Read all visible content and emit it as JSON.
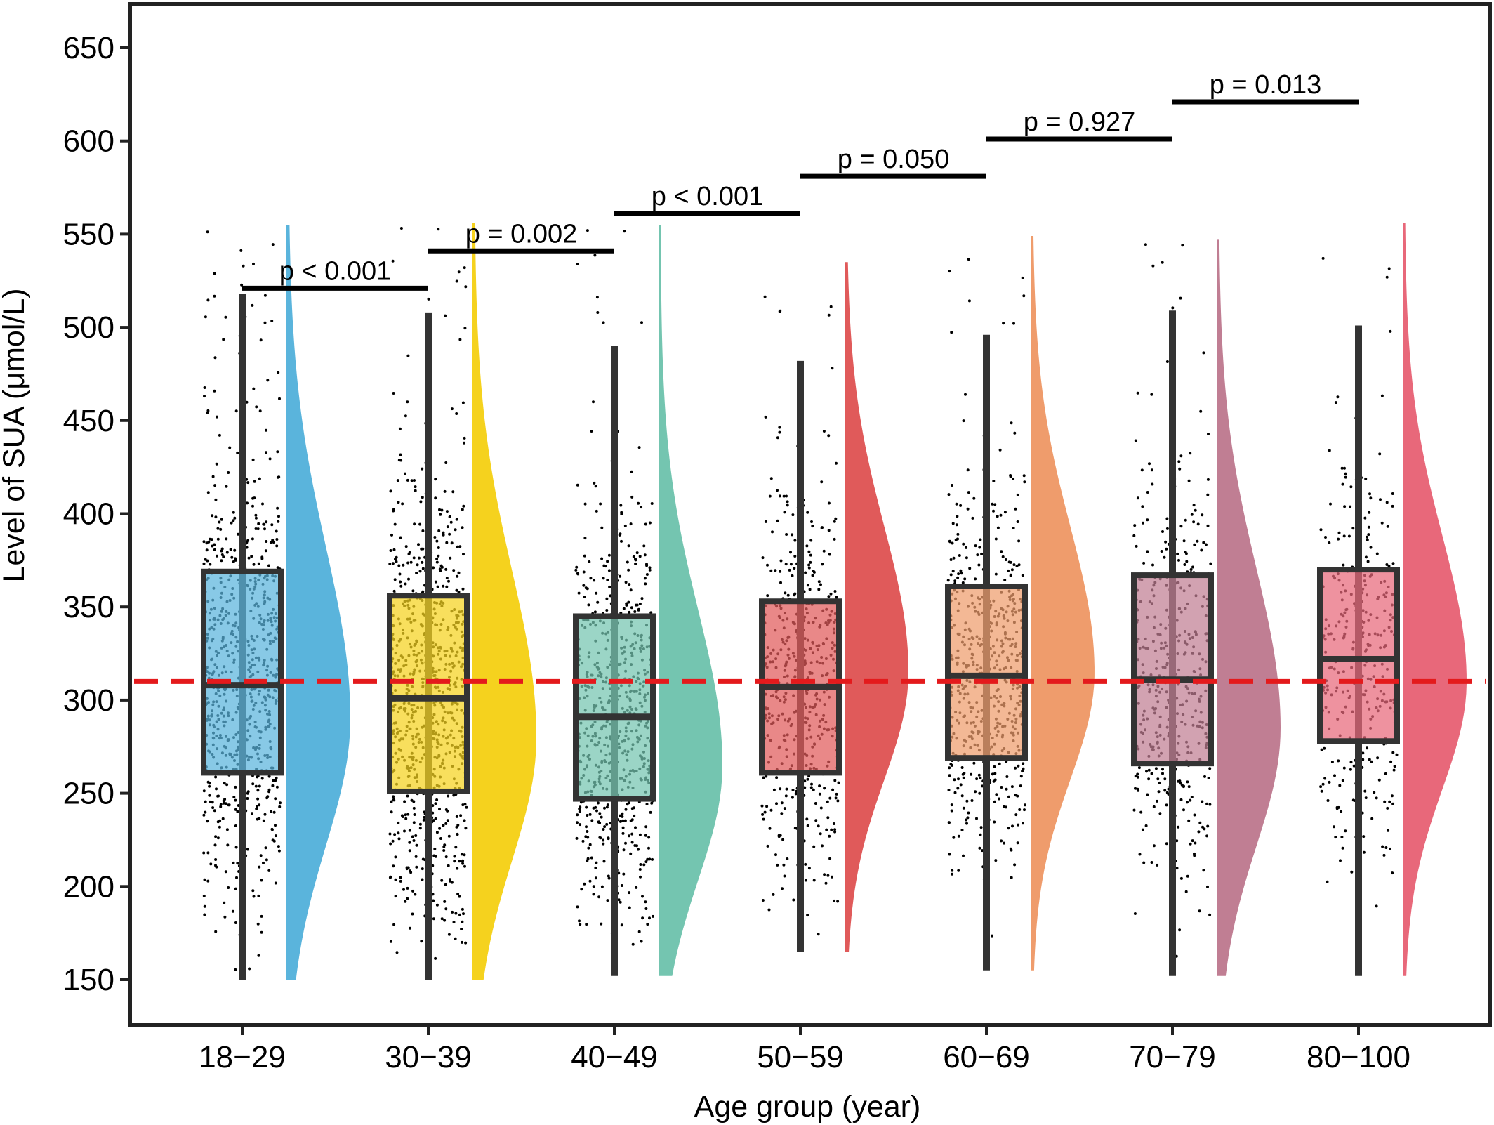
{
  "chart_data": {
    "type": "raincloud",
    "xlabel": "Age group (year)",
    "ylabel": "Level of SUA (μmol/L)",
    "ylim": [
      125,
      670
    ],
    "yticks": [
      150,
      200,
      250,
      300,
      350,
      400,
      450,
      500,
      550,
      600,
      650
    ],
    "reference_line": {
      "value": 310,
      "color": "#e41a1c",
      "style": "dashed"
    },
    "categories": [
      "18−29",
      "30−39",
      "40−49",
      "50−59",
      "60−69",
      "70−79",
      "80−100"
    ],
    "colors": [
      "#5ab4dc",
      "#f5d21e",
      "#74c5b0",
      "#e05a5a",
      "#ef9c6c",
      "#c07e93",
      "#e8687a"
    ],
    "box_stats": [
      {
        "group": "18−29",
        "whisker_low": 150,
        "q1": 261,
        "median": 308,
        "q3": 369,
        "whisker_high": 518,
        "min": 150,
        "max": 555,
        "n_points": 1400,
        "mode": 290
      },
      {
        "group": "30−39",
        "whisker_low": 150,
        "q1": 251,
        "median": 301,
        "q3": 356,
        "whisker_high": 508,
        "min": 150,
        "max": 556,
        "n_points": 1500,
        "mode": 280
      },
      {
        "group": "40−49",
        "whisker_low": 152,
        "q1": 247,
        "median": 291,
        "q3": 345,
        "whisker_high": 490,
        "min": 152,
        "max": 555,
        "n_points": 1200,
        "mode": 265
      },
      {
        "group": "50−59",
        "whisker_low": 165,
        "q1": 261,
        "median": 307,
        "q3": 353,
        "whisker_high": 482,
        "min": 165,
        "max": 535,
        "n_points": 900,
        "mode": 315
      },
      {
        "group": "60−69",
        "whisker_low": 155,
        "q1": 269,
        "median": 313,
        "q3": 361,
        "whisker_high": 496,
        "min": 155,
        "max": 549,
        "n_points": 1000,
        "mode": 315
      },
      {
        "group": "70−79",
        "whisker_low": 152,
        "q1": 266,
        "median": 311,
        "q3": 367,
        "whisker_high": 509,
        "min": 152,
        "max": 547,
        "n_points": 800,
        "mode": 285
      },
      {
        "group": "80−100",
        "whisker_low": 152,
        "q1": 278,
        "median": 322,
        "q3": 370,
        "whisker_high": 501,
        "min": 152,
        "max": 556,
        "n_points": 600,
        "mode": 310
      }
    ],
    "comparisons": [
      {
        "from": "18−29",
        "to": "30−39",
        "y": 521,
        "label": "p < 0.001"
      },
      {
        "from": "30−39",
        "to": "40−49",
        "y": 541,
        "label": "p = 0.002"
      },
      {
        "from": "40−49",
        "to": "50−59",
        "y": 561,
        "label": "p < 0.001"
      },
      {
        "from": "50−59",
        "to": "60−69",
        "y": 581,
        "label": "p = 0.050"
      },
      {
        "from": "60−69",
        "to": "70−79",
        "y": 601,
        "label": "p = 0.927"
      },
      {
        "from": "70−79",
        "to": "80−100",
        "y": 621,
        "label": "p = 0.013"
      }
    ]
  }
}
